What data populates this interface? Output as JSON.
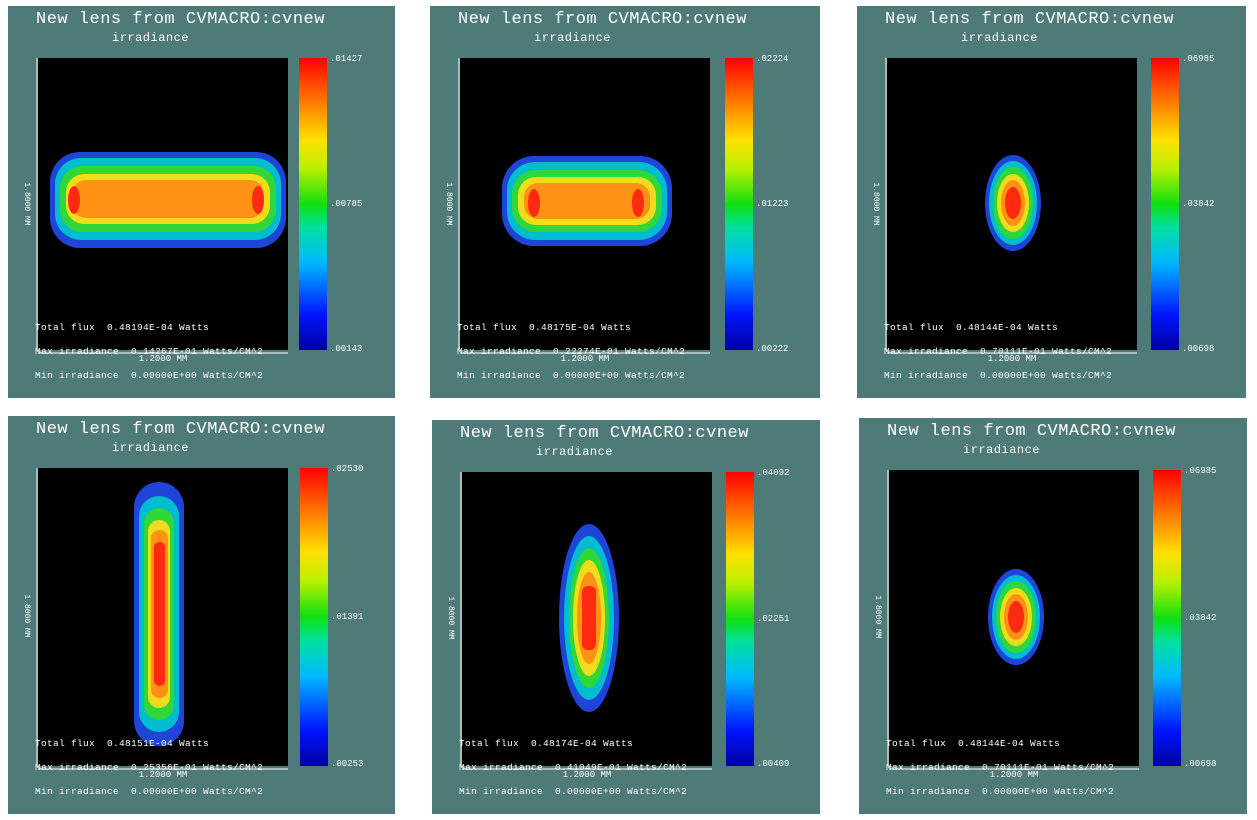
{
  "panels": [
    {
      "title": "New lens from CVMACRO:cvnew",
      "subtitle": "irradiance",
      "colorbar_ticks": [
        ".01427",
        ".00785",
        ".00143"
      ],
      "x_axis_label": "1.2000 MM",
      "y_axis_label": "1.8000 MM",
      "info": {
        "total_flux": "Total flux  0.48194E-04 Watts",
        "max_irradiance": "Max irradiance  0.14267E-01 Watts/CM^2",
        "min_irradiance": "Min irradiance  0.00000E+00 Watts/CM^2"
      }
    },
    {
      "title": "New lens from CVMACRO:cvnew",
      "subtitle": "irradiance",
      "colorbar_ticks": [
        ".02224",
        ".01223",
        ".00222"
      ],
      "x_axis_label": "1.2000 MM",
      "y_axis_label": "1.8000 MM",
      "info": {
        "total_flux": "Total flux  0.48175E-04 Watts",
        "max_irradiance": "Max irradiance  0.22274E-01 Watts/CM^2",
        "min_irradiance": "Min irradiance  0.00000E+00 Watts/CM^2"
      }
    },
    {
      "title": "New lens from CVMACRO:cvnew",
      "subtitle": "irradiance",
      "colorbar_ticks": [
        ".06985",
        ".03842",
        ".00698"
      ],
      "x_axis_label": "1.2000 MM",
      "y_axis_label": "1.8000 MM",
      "info": {
        "total_flux": "Total flux  0.48144E-04 Watts",
        "max_irradiance": "Max irradiance  0.70111E-01 Watts/CM^2",
        "min_irradiance": "Min irradiance  0.00000E+00 Watts/CM^2"
      }
    },
    {
      "title": "New lens from CVMACRO:cvnew",
      "subtitle": "irradiance",
      "colorbar_ticks": [
        ".02530",
        ".01391",
        ".00253"
      ],
      "x_axis_label": "1.2000 MM",
      "y_axis_label": "1.8000 MM",
      "info": {
        "total_flux": "Total flux  0.48151E-04 Watts",
        "max_irradiance": "Max irradiance  0.25356E-01 Watts/CM^2",
        "min_irradiance": "Min irradiance  0.00000E+00 Watts/CM^2"
      }
    },
    {
      "title": "New lens from CVMACRO:cvnew",
      "subtitle": "irradiance",
      "colorbar_ticks": [
        ".04092",
        ".02251",
        ".00409"
      ],
      "x_axis_label": "1.2000 MM",
      "y_axis_label": "1.8000 MM",
      "info": {
        "total_flux": "Total flux  0.48174E-04 Watts",
        "max_irradiance": "Max irradiance  0.41049E-01 Watts/CM^2",
        "min_irradiance": "Min irradiance  0.00000E+00 Watts/CM^2"
      }
    },
    {
      "title": "New lens from CVMACRO:cvnew",
      "subtitle": "irradiance",
      "colorbar_ticks": [
        ".06985",
        ".03842",
        ".00698"
      ],
      "x_axis_label": "1.2000 MM",
      "y_axis_label": "1.8000 MM",
      "info": {
        "total_flux": "Total flux  0.48144E-04 Watts",
        "max_irradiance": "Max irradiance  0.70111E-01 Watts/CM^2",
        "min_irradiance": "Min irradiance  0.00000E+00 Watts/CM^2"
      }
    }
  ],
  "chart_data": [
    {
      "type": "heatmap",
      "title": "New lens from CVMACRO:cvnew",
      "subtitle": "irradiance",
      "xlabel": "1.2000 MM",
      "ylabel": "1.8000 MM",
      "spot_shape": "horizontal bar with bright ends",
      "colorbar": {
        "max": 0.01427,
        "mid": 0.00785,
        "min": 0.00143
      },
      "total_flux_watts": 4.8194e-05,
      "max_irradiance_w_cm2": 0.014267,
      "min_irradiance_w_cm2": 0.0
    },
    {
      "type": "heatmap",
      "title": "New lens from CVMACRO:cvnew",
      "subtitle": "irradiance",
      "xlabel": "1.2000 MM",
      "ylabel": "1.8000 MM",
      "spot_shape": "shorter horizontal bar with bright ends",
      "colorbar": {
        "max": 0.02224,
        "mid": 0.01223,
        "min": 0.00222
      },
      "total_flux_watts": 4.8175e-05,
      "max_irradiance_w_cm2": 0.022274,
      "min_irradiance_w_cm2": 0.0
    },
    {
      "type": "heatmap",
      "title": "New lens from CVMACRO:cvnew",
      "subtitle": "irradiance",
      "xlabel": "1.2000 MM",
      "ylabel": "1.8000 MM",
      "spot_shape": "small ellipse",
      "colorbar": {
        "max": 0.06985,
        "mid": 0.03842,
        "min": 0.00698
      },
      "total_flux_watts": 4.8144e-05,
      "max_irradiance_w_cm2": 0.070111,
      "min_irradiance_w_cm2": 0.0
    },
    {
      "type": "heatmap",
      "title": "New lens from CVMACRO:cvnew",
      "subtitle": "irradiance",
      "xlabel": "1.2000 MM",
      "ylabel": "1.8000 MM",
      "spot_shape": "tall vertical bar",
      "colorbar": {
        "max": 0.0253,
        "mid": 0.01391,
        "min": 0.00253
      },
      "total_flux_watts": 4.8151e-05,
      "max_irradiance_w_cm2": 0.025356,
      "min_irradiance_w_cm2": 0.0
    },
    {
      "type": "heatmap",
      "title": "New lens from CVMACRO:cvnew",
      "subtitle": "irradiance",
      "xlabel": "1.2000 MM",
      "ylabel": "1.8000 MM",
      "spot_shape": "vertical ellipse",
      "colorbar": {
        "max": 0.04092,
        "mid": 0.02251,
        "min": 0.00409
      },
      "total_flux_watts": 4.8174e-05,
      "max_irradiance_w_cm2": 0.041049,
      "min_irradiance_w_cm2": 0.0
    },
    {
      "type": "heatmap",
      "title": "New lens from CVMACRO:cvnew",
      "subtitle": "irradiance",
      "xlabel": "1.2000 MM",
      "ylabel": "1.8000 MM",
      "spot_shape": "small ellipse",
      "colorbar": {
        "max": 0.06985,
        "mid": 0.03842,
        "min": 0.00698
      },
      "total_flux_watts": 4.8144e-05,
      "max_irradiance_w_cm2": 0.070111,
      "min_irradiance_w_cm2": 0.0
    }
  ]
}
